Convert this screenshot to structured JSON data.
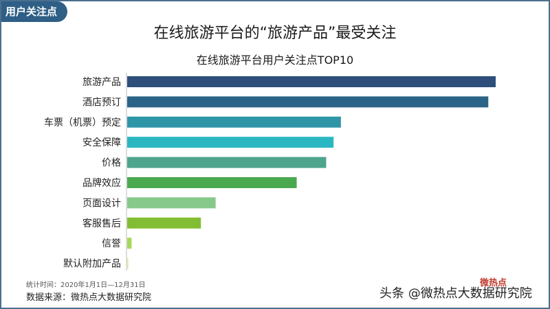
{
  "header": {
    "tag": "用户关注点",
    "title": "在线旅游平台的“旅游产品”最受关注"
  },
  "chart_data": {
    "type": "bar",
    "orientation": "horizontal",
    "title": "在线旅游平台用户关注点TOP10",
    "categories": [
      "旅游产品",
      "酒店预订",
      "车票（机票）预定",
      "安全保障",
      "价格",
      "品牌效应",
      "页面设计",
      "客服售后",
      "信誉",
      "默认附加产品"
    ],
    "values": [
      100,
      98,
      58,
      56,
      54,
      46,
      24,
      20,
      1.2,
      0.3
    ],
    "colors": [
      "#2e4f7c",
      "#2b6487",
      "#2f96a8",
      "#2bb7c2",
      "#4ea58e",
      "#4aa84f",
      "#86c98a",
      "#83bd33",
      "#a6d85a",
      "#d9ee9a"
    ],
    "xlim": [
      0,
      100
    ],
    "grid": false,
    "legend": "none"
  },
  "footer": {
    "stat_period": "统计时间：2020年1月1日—12月31日",
    "source": "数据来源：微热点大数据研究院",
    "watermark": "头条 @微热点大数据研究院",
    "watermark_logo": "微热点"
  }
}
